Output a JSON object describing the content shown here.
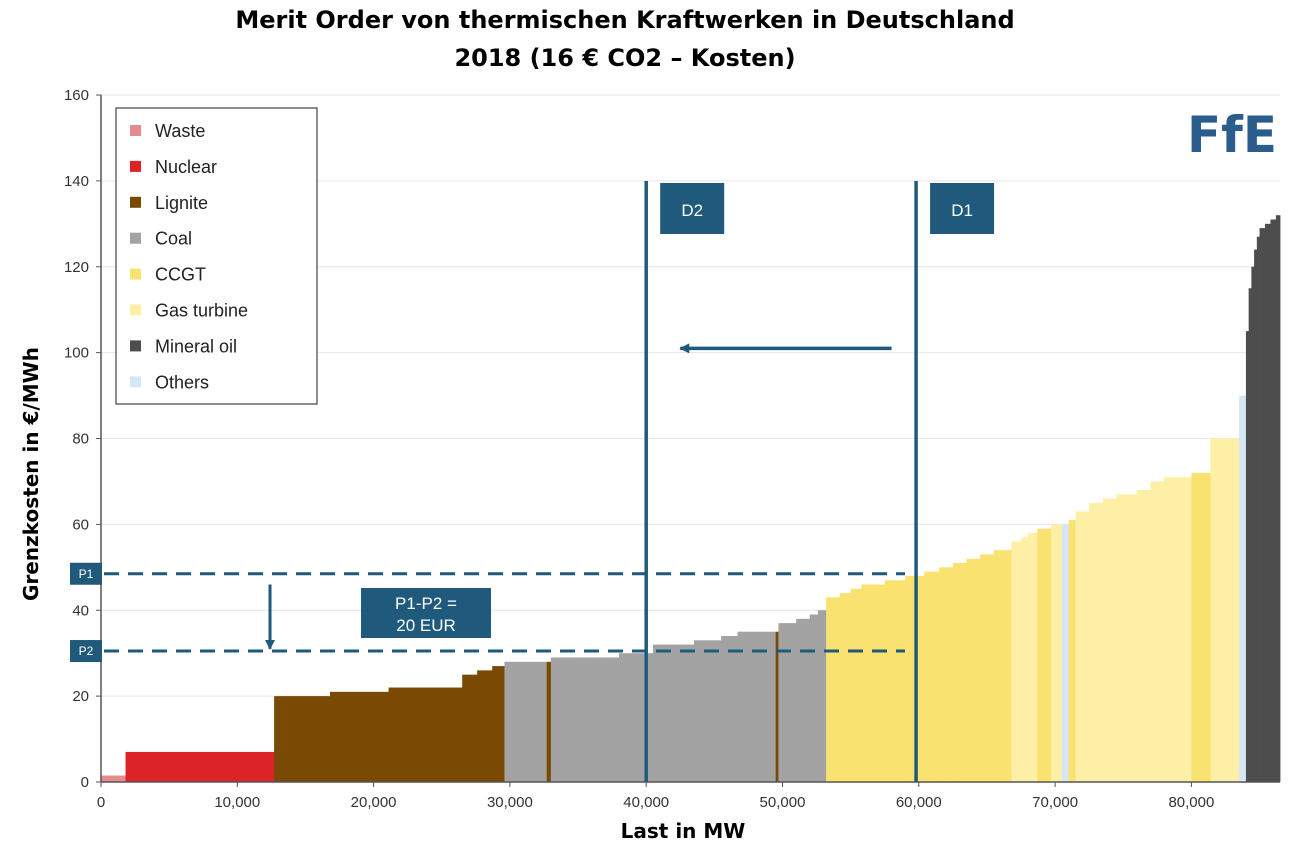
{
  "chart_data": {
    "type": "bar",
    "title": "Merit Order von thermischen Kraftwerken in Deutschland",
    "subtitle": "2018 (16 € CO2 – Kosten)",
    "xlabel": "Last in MW",
    "ylabel": "Grenzkosten in €/MWh",
    "xlim": [
      0,
      86500
    ],
    "ylim": [
      0,
      160
    ],
    "x_ticks": [
      0,
      10000,
      20000,
      30000,
      40000,
      50000,
      60000,
      70000,
      80000
    ],
    "x_tick_labels": [
      "0",
      "10,000",
      "20,000",
      "30,000",
      "40,000",
      "50,000",
      "60,000",
      "70,000",
      "80,000"
    ],
    "y_ticks": [
      0,
      20,
      40,
      60,
      80,
      100,
      120,
      140,
      160
    ],
    "y_tick_labels": [
      "0",
      "20",
      "40",
      "60",
      "80",
      "100",
      "120",
      "140",
      "160"
    ],
    "grid": true,
    "legend_position": "top-left",
    "legend": [
      {
        "name": "Waste",
        "color": "#e58a8f"
      },
      {
        "name": "Nuclear",
        "color": "#dc2328"
      },
      {
        "name": "Lignite",
        "color": "#7a4a05"
      },
      {
        "name": "Coal",
        "color": "#a3a3a3"
      },
      {
        "name": "CCGT",
        "color": "#f9e270"
      },
      {
        "name": "Gas turbine",
        "color": "#fdf0a6"
      },
      {
        "name": "Mineral oil",
        "color": "#4d4d4d"
      },
      {
        "name": "Others",
        "color": "#d6e6f3"
      }
    ],
    "supply_steps": [
      {
        "x0": 0,
        "x1": 1800,
        "y": 1.5,
        "type": "Waste"
      },
      {
        "x0": 1800,
        "x1": 12700,
        "y": 7,
        "type": "Nuclear"
      },
      {
        "x0": 12700,
        "x1": 16800,
        "y": 20,
        "type": "Lignite"
      },
      {
        "x0": 16800,
        "x1": 21100,
        "y": 21,
        "type": "Lignite"
      },
      {
        "x0": 21100,
        "x1": 26500,
        "y": 22,
        "type": "Lignite"
      },
      {
        "x0": 26500,
        "x1": 27600,
        "y": 25,
        "type": "Lignite"
      },
      {
        "x0": 27600,
        "x1": 28700,
        "y": 26,
        "type": "Lignite"
      },
      {
        "x0": 28700,
        "x1": 29600,
        "y": 27,
        "type": "Lignite"
      },
      {
        "x0": 29600,
        "x1": 32700,
        "y": 28,
        "type": "Coal"
      },
      {
        "x0": 32700,
        "x1": 33000,
        "y": 28,
        "type": "Lignite"
      },
      {
        "x0": 33000,
        "x1": 38000,
        "y": 29,
        "type": "Coal"
      },
      {
        "x0": 38000,
        "x1": 40500,
        "y": 30,
        "type": "Coal"
      },
      {
        "x0": 40500,
        "x1": 43500,
        "y": 32,
        "type": "Coal"
      },
      {
        "x0": 43500,
        "x1": 45500,
        "y": 33,
        "type": "Coal"
      },
      {
        "x0": 45500,
        "x1": 46700,
        "y": 34,
        "type": "Coal"
      },
      {
        "x0": 46700,
        "x1": 49500,
        "y": 35,
        "type": "Coal"
      },
      {
        "x0": 49500,
        "x1": 49700,
        "y": 35,
        "type": "Lignite"
      },
      {
        "x0": 49700,
        "x1": 51000,
        "y": 37,
        "type": "Coal"
      },
      {
        "x0": 51000,
        "x1": 52000,
        "y": 38,
        "type": "Coal"
      },
      {
        "x0": 52000,
        "x1": 52600,
        "y": 39,
        "type": "Coal"
      },
      {
        "x0": 52600,
        "x1": 53200,
        "y": 40,
        "type": "Coal"
      },
      {
        "x0": 53200,
        "x1": 54200,
        "y": 43,
        "type": "CCGT"
      },
      {
        "x0": 54200,
        "x1": 55000,
        "y": 44,
        "type": "CCGT"
      },
      {
        "x0": 55000,
        "x1": 55800,
        "y": 45,
        "type": "CCGT"
      },
      {
        "x0": 55800,
        "x1": 57500,
        "y": 46,
        "type": "CCGT"
      },
      {
        "x0": 57500,
        "x1": 59000,
        "y": 47,
        "type": "CCGT"
      },
      {
        "x0": 59000,
        "x1": 60400,
        "y": 48,
        "type": "CCGT"
      },
      {
        "x0": 60400,
        "x1": 61500,
        "y": 49,
        "type": "CCGT"
      },
      {
        "x0": 61500,
        "x1": 62500,
        "y": 50,
        "type": "CCGT"
      },
      {
        "x0": 62500,
        "x1": 63500,
        "y": 51,
        "type": "CCGT"
      },
      {
        "x0": 63500,
        "x1": 64500,
        "y": 52,
        "type": "CCGT"
      },
      {
        "x0": 64500,
        "x1": 65500,
        "y": 53,
        "type": "CCGT"
      },
      {
        "x0": 65500,
        "x1": 66800,
        "y": 54,
        "type": "CCGT"
      },
      {
        "x0": 66800,
        "x1": 67500,
        "y": 56,
        "type": "Gas turbine"
      },
      {
        "x0": 67500,
        "x1": 68000,
        "y": 57,
        "type": "Gas turbine"
      },
      {
        "x0": 68000,
        "x1": 68700,
        "y": 58,
        "type": "Gas turbine"
      },
      {
        "x0": 68700,
        "x1": 69700,
        "y": 59,
        "type": "CCGT"
      },
      {
        "x0": 69700,
        "x1": 70500,
        "y": 60,
        "type": "Gas turbine"
      },
      {
        "x0": 70500,
        "x1": 71000,
        "y": 60,
        "type": "Others"
      },
      {
        "x0": 71000,
        "x1": 71500,
        "y": 61,
        "type": "CCGT"
      },
      {
        "x0": 71500,
        "x1": 72500,
        "y": 63,
        "type": "Gas turbine"
      },
      {
        "x0": 72500,
        "x1": 73500,
        "y": 65,
        "type": "Gas turbine"
      },
      {
        "x0": 73500,
        "x1": 74500,
        "y": 66,
        "type": "Gas turbine"
      },
      {
        "x0": 74500,
        "x1": 76000,
        "y": 67,
        "type": "Gas turbine"
      },
      {
        "x0": 76000,
        "x1": 77000,
        "y": 68,
        "type": "Gas turbine"
      },
      {
        "x0": 77000,
        "x1": 78000,
        "y": 70,
        "type": "Gas turbine"
      },
      {
        "x0": 78000,
        "x1": 80000,
        "y": 71,
        "type": "Gas turbine"
      },
      {
        "x0": 80000,
        "x1": 81400,
        "y": 72,
        "type": "CCGT"
      },
      {
        "x0": 81400,
        "x1": 83500,
        "y": 80,
        "type": "Gas turbine"
      },
      {
        "x0": 83500,
        "x1": 84000,
        "y": 90,
        "type": "Others"
      },
      {
        "x0": 84000,
        "x1": 84200,
        "y": 105,
        "type": "Mineral oil"
      },
      {
        "x0": 84200,
        "x1": 84400,
        "y": 115,
        "type": "Mineral oil"
      },
      {
        "x0": 84400,
        "x1": 84600,
        "y": 120,
        "type": "Mineral oil"
      },
      {
        "x0": 84600,
        "x1": 84800,
        "y": 124,
        "type": "Mineral oil"
      },
      {
        "x0": 84800,
        "x1": 85000,
        "y": 127,
        "type": "Mineral oil"
      },
      {
        "x0": 85000,
        "x1": 85400,
        "y": 129,
        "type": "Mineral oil"
      },
      {
        "x0": 85400,
        "x1": 85800,
        "y": 130,
        "type": "Mineral oil"
      },
      {
        "x0": 85800,
        "x1": 86200,
        "y": 131,
        "type": "Mineral oil"
      },
      {
        "x0": 86200,
        "x1": 86500,
        "y": 132,
        "type": "Mineral oil"
      }
    ],
    "demand_lines": [
      {
        "label": "D2",
        "x": 40000
      },
      {
        "label": "D1",
        "x": 59800
      }
    ],
    "price_lines": [
      {
        "label": "P1",
        "y": 48.5
      },
      {
        "label": "P2",
        "y": 30.5
      }
    ],
    "annotations": {
      "price_difference": [
        "P1-P2 =",
        "20 EUR"
      ],
      "demand_shift_arrow": {
        "from_x": 58000,
        "to_x": 42500,
        "y": 101
      },
      "price_drop_arrow": {
        "x": 12400,
        "from_y": 46,
        "to_y": 31
      }
    },
    "annotation_color": "#1f5a7c"
  },
  "logo": {
    "text": "FfE",
    "color": "#2b5d8c"
  }
}
